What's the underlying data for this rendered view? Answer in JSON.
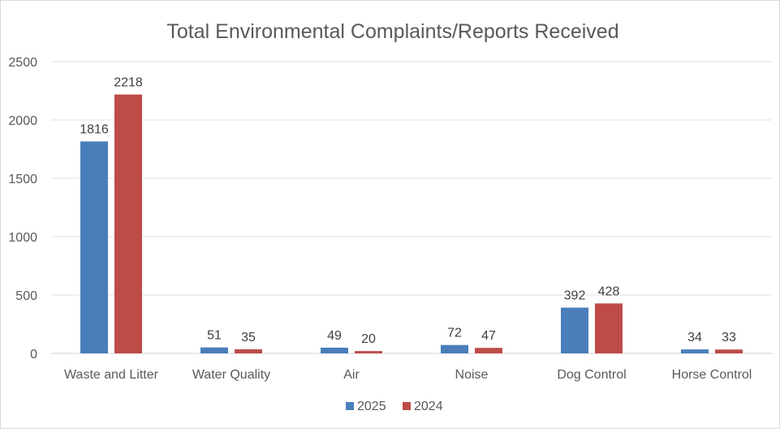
{
  "chart_data": {
    "type": "bar",
    "title": "Total Environmental Complaints/Reports Received",
    "categories": [
      "Waste and Litter",
      "Water Quality",
      "Air",
      "Noise",
      "Dog Control",
      "Horse Control"
    ],
    "series": [
      {
        "name": "2025",
        "color": "#4a7ebb",
        "values": [
          1816,
          51,
          49,
          72,
          392,
          34
        ]
      },
      {
        "name": "2024",
        "color": "#be4b48",
        "values": [
          2218,
          35,
          20,
          47,
          428,
          33
        ]
      }
    ],
    "ylim": [
      0,
      2500
    ],
    "yticks": [
      0,
      500,
      1000,
      1500,
      2000,
      2500
    ],
    "grid": true,
    "legend": "bottom",
    "data_labels": true
  }
}
